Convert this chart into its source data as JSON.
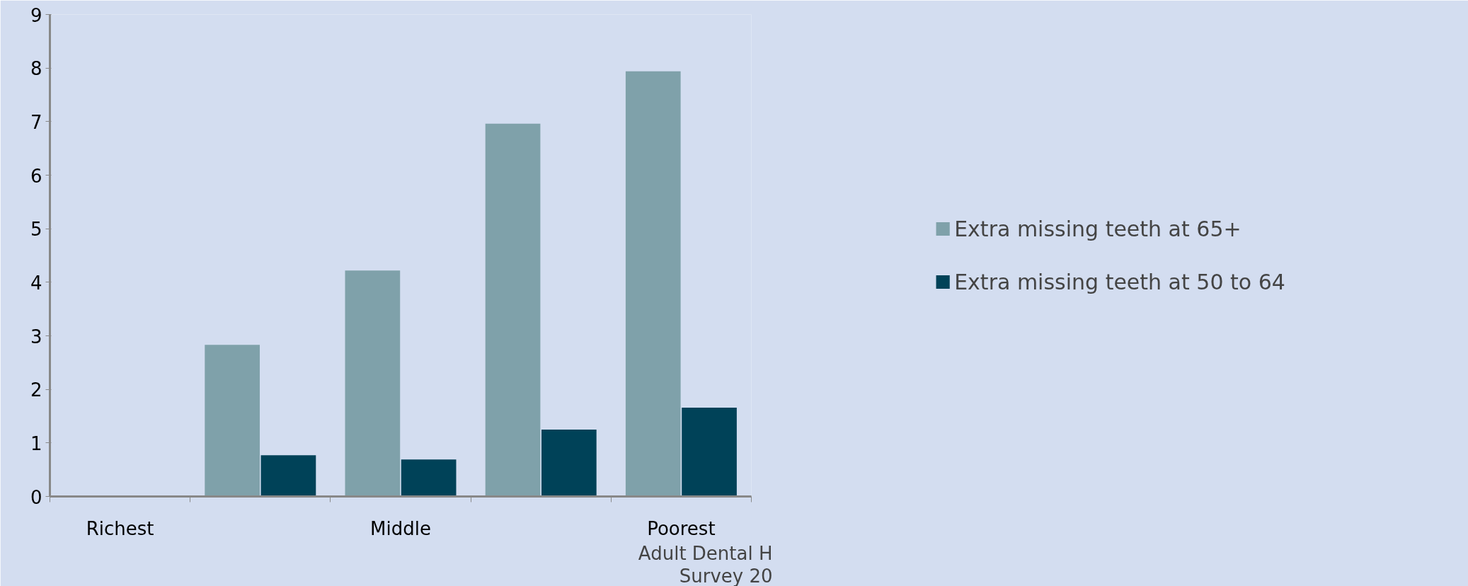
{
  "chart_data": {
    "type": "bar",
    "categories": [
      "Richest",
      null,
      "Middle",
      null,
      "Poorest"
    ],
    "series": [
      {
        "name": "Extra missing teeth at 65+",
        "color": "#7fa1aa",
        "values": [
          0,
          2.83,
          4.22,
          6.96,
          7.94
        ]
      },
      {
        "name": "Extra missing teeth at 50 to 64",
        "color": "#004258",
        "values": [
          0,
          0.77,
          0.69,
          1.25,
          1.66
        ]
      }
    ],
    "ylim": [
      0,
      9
    ],
    "yticks": [
      0,
      1,
      2,
      3,
      4,
      5,
      6,
      7,
      8,
      9
    ],
    "grid": false,
    "legend": "right",
    "annotations": [
      "Adult Dental H\nSurvey 20"
    ]
  }
}
